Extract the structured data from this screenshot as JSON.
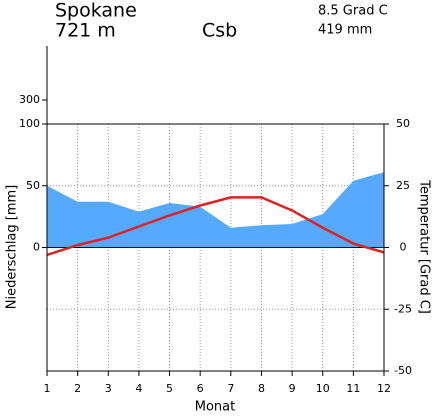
{
  "chart_data": {
    "type": "climate",
    "station": "Spokane",
    "elevation": "721 m",
    "climate_class": "Csb",
    "mean_temperature": "8.5 Grad C",
    "annual_precipitation": "419 mm",
    "ylabel": "Niederschlag [mm]",
    "y2label": "Temperatur [Grad C]",
    "xlabel": "Monat",
    "x": [
      1,
      2,
      3,
      4,
      5,
      6,
      7,
      8,
      9,
      10,
      11,
      12
    ],
    "xlim": [
      1,
      12
    ],
    "xticks": [
      1,
      2,
      3,
      4,
      5,
      6,
      7,
      8,
      9,
      10,
      11,
      12
    ],
    "ylim": [
      -100,
      750
    ],
    "yticks": [
      0,
      50,
      100,
      300
    ],
    "y2lim": [
      -50,
      50
    ],
    "y2ticks": [
      -50,
      -25,
      0,
      25,
      50
    ],
    "grid": true,
    "series": [
      {
        "name": "Niederschlag",
        "axis": "y",
        "color": "#55aaff",
        "values": [
          50,
          37,
          37,
          29,
          36,
          33,
          16,
          18,
          19,
          27,
          54,
          61
        ]
      },
      {
        "name": "Temperatur",
        "axis": "y2",
        "color": "#dd2222",
        "values": [
          -3,
          1,
          4,
          8.5,
          13,
          17,
          20.3,
          20.3,
          15,
          8,
          1.6,
          -2
        ]
      }
    ]
  }
}
